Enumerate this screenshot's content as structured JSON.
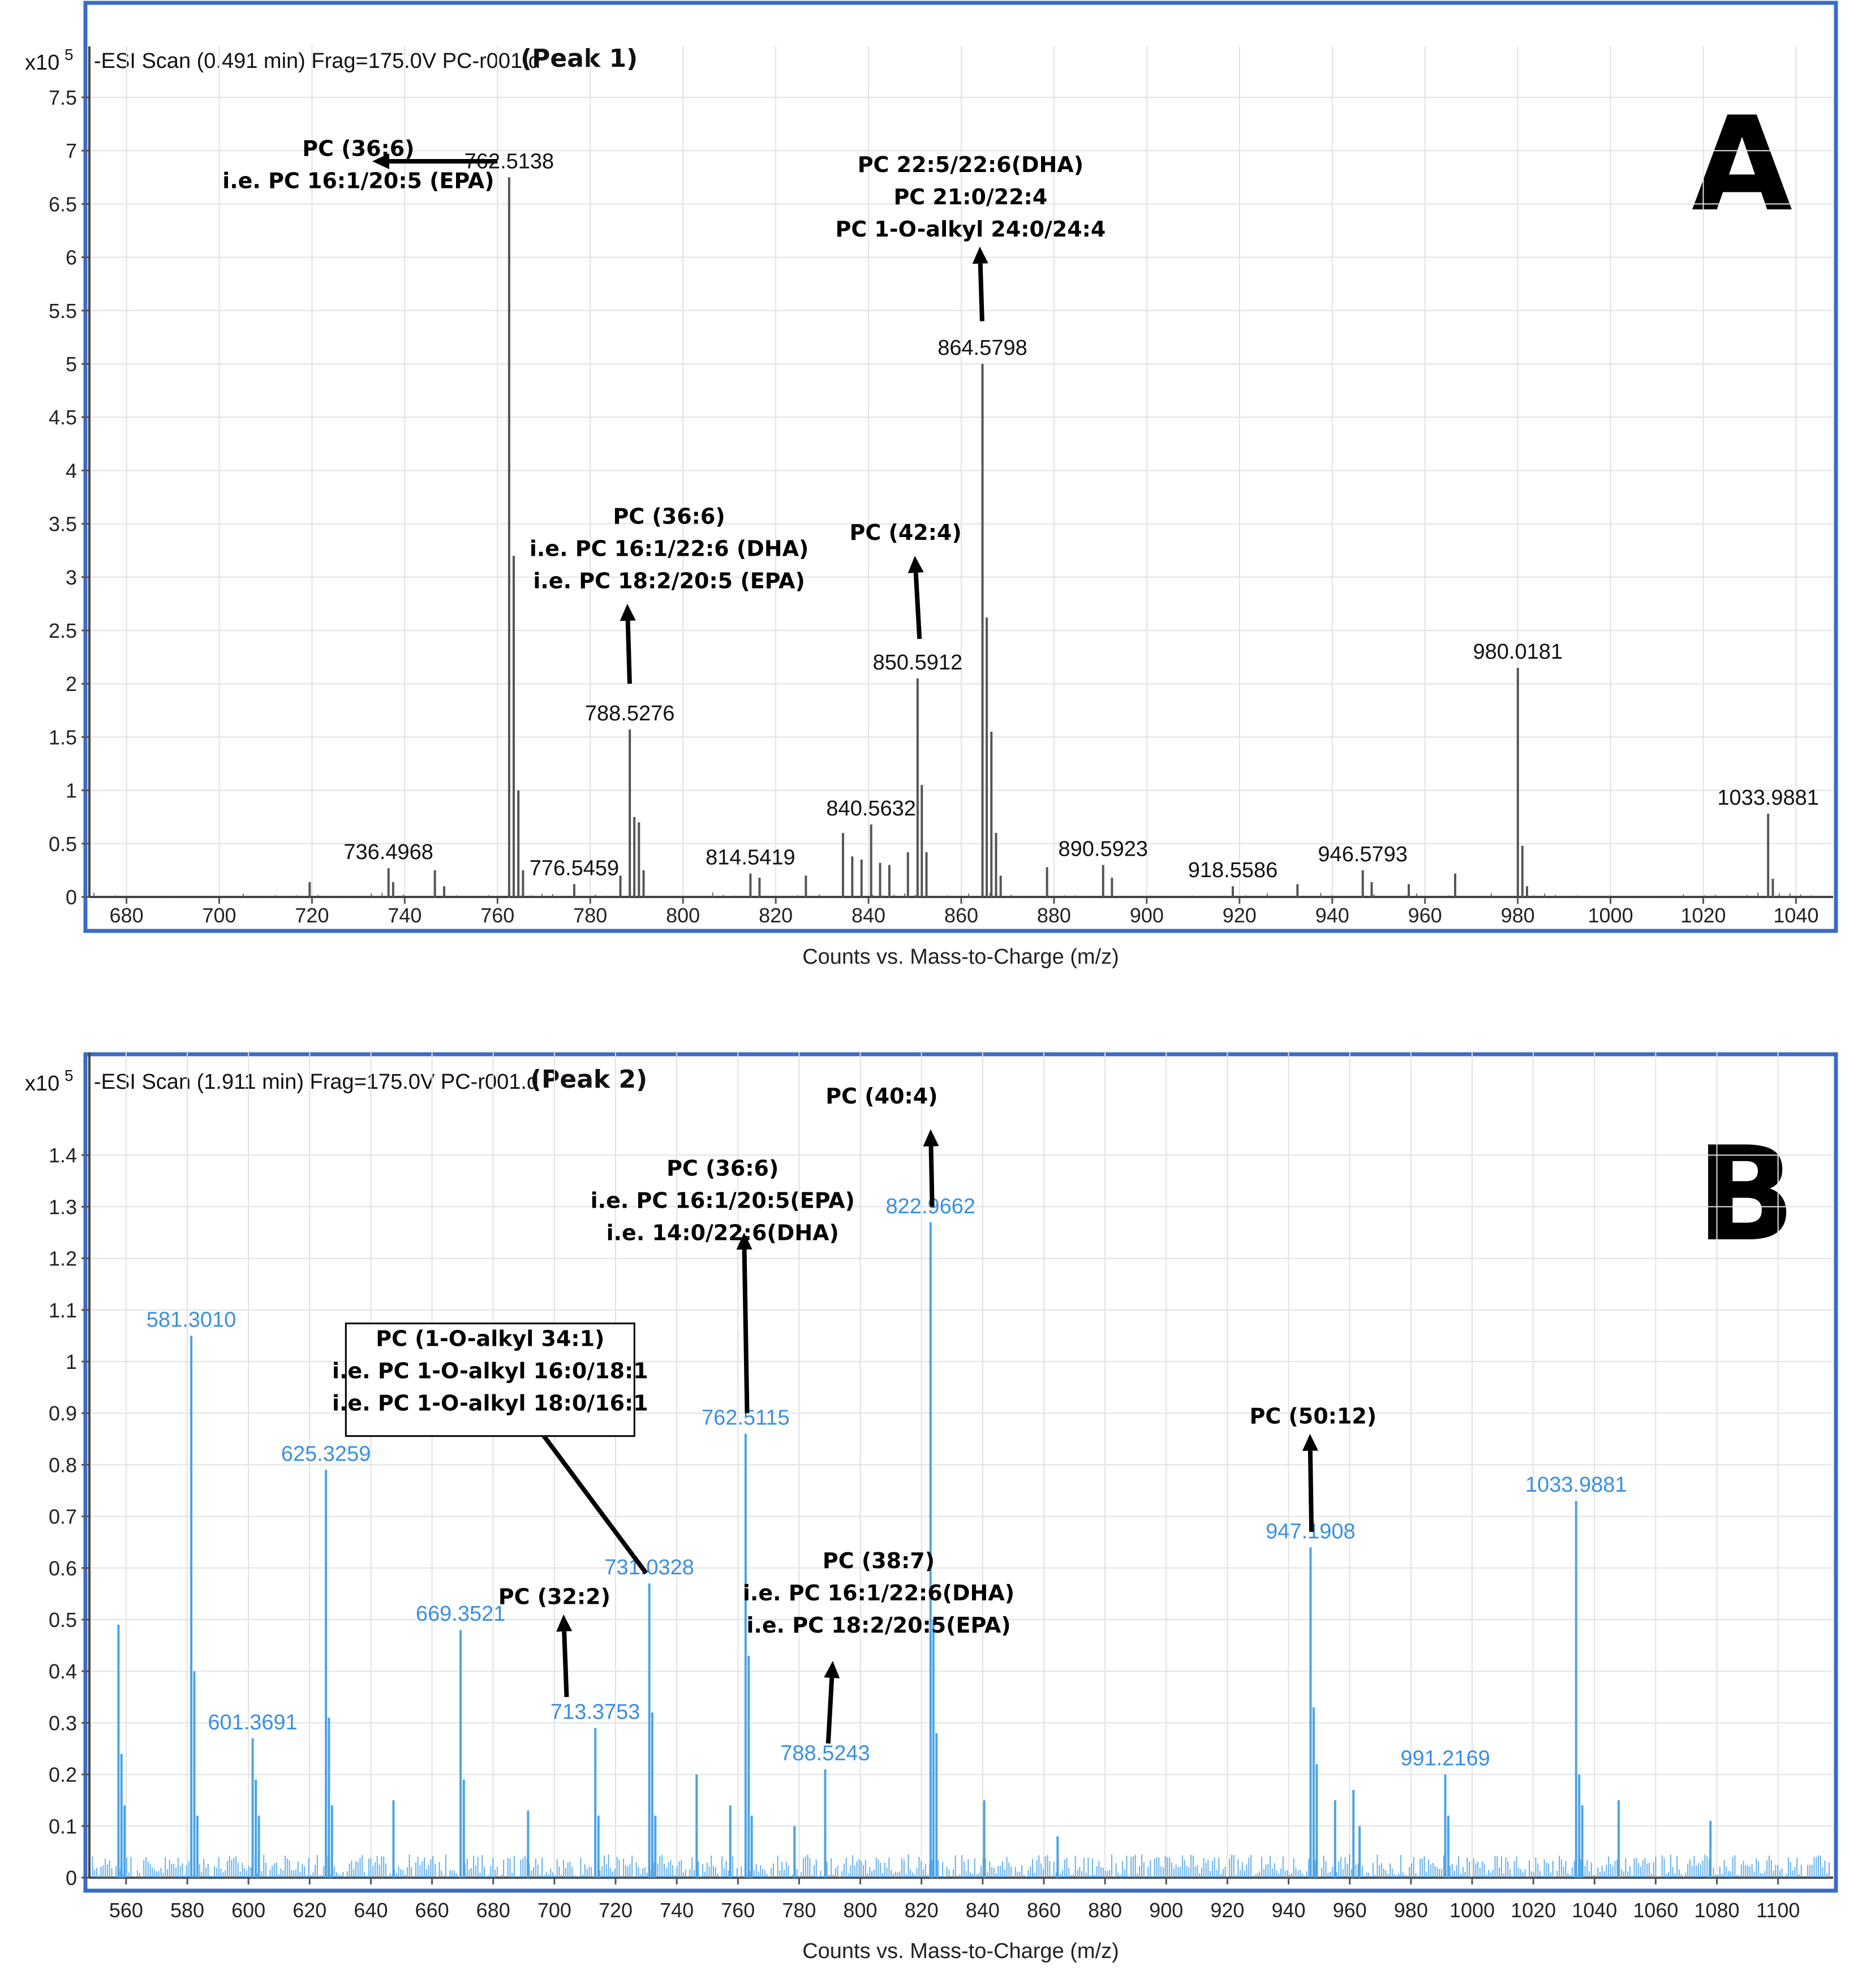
{
  "chart_data": [
    {
      "type": "bar",
      "panel_label": "A",
      "header": "-ESI Scan (0.491 min) Frag=175.0V PC-r001.d",
      "peak_title": "(Peak 1)",
      "y_multiplier": "x10",
      "y_exponent": "5",
      "xlabel": "Counts vs. Mass-to-Charge (m/z)",
      "xlim": [
        672,
        1048
      ],
      "ylim": [
        0,
        7.5
      ],
      "x_ticks": [
        680,
        700,
        720,
        740,
        760,
        780,
        800,
        820,
        840,
        860,
        880,
        900,
        920,
        940,
        960,
        980,
        1000,
        1020,
        1040
      ],
      "y_ticks": [
        0,
        0.5,
        1,
        1.5,
        2,
        2.5,
        3,
        3.5,
        4,
        4.5,
        5,
        5.5,
        6,
        6.5,
        7,
        7.5
      ],
      "y_tick_labels": [
        "0",
        "0.5",
        "1",
        "1.5",
        "2",
        "2.5",
        "3",
        "3.5",
        "4",
        "4.5",
        "5",
        "5.5",
        "6",
        "6.5",
        "7",
        "7.5"
      ],
      "bar_color": "#555555",
      "label_color": "#111111",
      "grid": true,
      "peaks": [
        {
          "mz": 736.5,
          "y": 0.27
        },
        {
          "mz": 737.5,
          "y": 0.14
        },
        {
          "mz": 746.5,
          "y": 0.25
        },
        {
          "mz": 748.5,
          "y": 0.1
        },
        {
          "mz": 719.5,
          "y": 0.14
        },
        {
          "mz": 762.5138,
          "y": 6.75
        },
        {
          "mz": 763.5,
          "y": 3.2
        },
        {
          "mz": 764.5,
          "y": 1.0
        },
        {
          "mz": 765.5,
          "y": 0.25
        },
        {
          "mz": 776.5459,
          "y": 0.12
        },
        {
          "mz": 786.5,
          "y": 0.2
        },
        {
          "mz": 788.5276,
          "y": 1.57
        },
        {
          "mz": 789.5,
          "y": 0.75
        },
        {
          "mz": 790.5,
          "y": 0.7
        },
        {
          "mz": 791.5,
          "y": 0.25
        },
        {
          "mz": 814.5419,
          "y": 0.22
        },
        {
          "mz": 816.5,
          "y": 0.18
        },
        {
          "mz": 826.5,
          "y": 0.2
        },
        {
          "mz": 834.5,
          "y": 0.6
        },
        {
          "mz": 836.5,
          "y": 0.38
        },
        {
          "mz": 838.5,
          "y": 0.35
        },
        {
          "mz": 840.5632,
          "y": 0.68
        },
        {
          "mz": 842.5,
          "y": 0.32
        },
        {
          "mz": 844.5,
          "y": 0.3
        },
        {
          "mz": 848.5,
          "y": 0.42
        },
        {
          "mz": 850.5912,
          "y": 2.05
        },
        {
          "mz": 851.5,
          "y": 1.05
        },
        {
          "mz": 852.5,
          "y": 0.42
        },
        {
          "mz": 864.5798,
          "y": 5.0
        },
        {
          "mz": 865.5,
          "y": 2.62
        },
        {
          "mz": 866.5,
          "y": 1.55
        },
        {
          "mz": 867.5,
          "y": 0.6
        },
        {
          "mz": 868.5,
          "y": 0.2
        },
        {
          "mz": 878.5,
          "y": 0.28
        },
        {
          "mz": 890.5923,
          "y": 0.3
        },
        {
          "mz": 892.5,
          "y": 0.18
        },
        {
          "mz": 918.5586,
          "y": 0.1
        },
        {
          "mz": 932.5,
          "y": 0.12
        },
        {
          "mz": 946.5793,
          "y": 0.25
        },
        {
          "mz": 948.5,
          "y": 0.14
        },
        {
          "mz": 956.5,
          "y": 0.12
        },
        {
          "mz": 966.5,
          "y": 0.22
        },
        {
          "mz": 980.0181,
          "y": 2.15
        },
        {
          "mz": 981.0,
          "y": 0.48
        },
        {
          "mz": 982.0,
          "y": 0.1
        },
        {
          "mz": 1033.9881,
          "y": 0.78
        },
        {
          "mz": 1035.0,
          "y": 0.17
        }
      ],
      "peak_labels": [
        {
          "mz": 736.4968,
          "y": 0.27,
          "text": "736.4968"
        },
        {
          "mz": 762.5138,
          "y": 6.75,
          "text": "762.5138"
        },
        {
          "mz": 776.5459,
          "y": 0.12,
          "text": "776.5459"
        },
        {
          "mz": 788.5276,
          "y": 1.57,
          "text": "788.5276"
        },
        {
          "mz": 814.5419,
          "y": 0.22,
          "text": "814.5419"
        },
        {
          "mz": 840.5632,
          "y": 0.68,
          "text": "840.5632"
        },
        {
          "mz": 850.5912,
          "y": 2.05,
          "text": "850.5912"
        },
        {
          "mz": 864.5798,
          "y": 5.0,
          "text": "864.5798"
        },
        {
          "mz": 890.5923,
          "y": 0.3,
          "text": "890.5923"
        },
        {
          "mz": 918.5586,
          "y": 0.1,
          "text": "918.5586"
        },
        {
          "mz": 946.5793,
          "y": 0.25,
          "text": "946.5793"
        },
        {
          "mz": 980.0181,
          "y": 2.15,
          "text": "980.0181"
        },
        {
          "mz": 1033.9881,
          "y": 0.78,
          "text": "1033.9881"
        }
      ],
      "annotations": [
        {
          "mz": 730,
          "y": 6.95,
          "lines": [
            "PC (36:6)",
            "i.e. PC 16:1/20:5 (EPA)"
          ]
        },
        {
          "mz": 797,
          "y": 3.5,
          "lines": [
            "PC (36:6)",
            "i.e. PC 16:1/22:6 (DHA)",
            "i.e. PC 18:2/20:5 (EPA)"
          ]
        },
        {
          "mz": 848,
          "y": 3.35,
          "lines": [
            "PC (42:4)"
          ]
        },
        {
          "mz": 862,
          "y": 6.8,
          "lines": [
            "PC 22:5/22:6(DHA)",
            "PC 21:0/22:4",
            "PC 1-O-alkyl 24:0/24:4"
          ]
        }
      ],
      "arrows": [
        {
          "from": [
            760,
            6.9
          ],
          "to": [
            733,
            6.9
          ]
        },
        {
          "from": [
            788.5,
            2.0
          ],
          "to": [
            788,
            2.75
          ]
        },
        {
          "from": [
            851,
            2.42
          ],
          "to": [
            850,
            3.2
          ]
        },
        {
          "from": [
            864.5,
            5.4
          ],
          "to": [
            864,
            6.1
          ]
        }
      ]
    },
    {
      "type": "bar",
      "panel_label": "B",
      "header": "-ESI Scan (1.911 min) Frag=175.0V PC-r001.d",
      "peak_title": "(Peak 2)",
      "y_multiplier": "x10",
      "y_exponent": "5",
      "xlabel": "Counts vs. Mass-to-Charge (m/z)",
      "xlim": [
        548,
        1118
      ],
      "ylim": [
        0,
        1.5
      ],
      "x_ticks": [
        560,
        580,
        600,
        620,
        640,
        660,
        680,
        700,
        720,
        740,
        760,
        780,
        800,
        820,
        840,
        860,
        880,
        900,
        920,
        940,
        960,
        980,
        1000,
        1020,
        1040,
        1060,
        1080,
        1100
      ],
      "y_ticks": [
        0,
        0.1,
        0.2,
        0.3,
        0.4,
        0.5,
        0.6,
        0.7,
        0.8,
        0.9,
        1.0,
        1.1,
        1.2,
        1.3,
        1.4
      ],
      "y_tick_labels": [
        "0",
        "0.1",
        "0.2",
        "0.3",
        "0.4",
        "0.5",
        "0.6",
        "0.7",
        "0.8",
        "0.9",
        "1",
        "1.1",
        "1.2",
        "1.3",
        "1.4"
      ],
      "bar_color": "#4ba3e8",
      "label_color": "#3a8fe0",
      "grid": true,
      "peaks": [
        {
          "mz": 557.5,
          "y": 0.49
        },
        {
          "mz": 558.5,
          "y": 0.24
        },
        {
          "mz": 559.5,
          "y": 0.14
        },
        {
          "mz": 581.301,
          "y": 1.05
        },
        {
          "mz": 582.3,
          "y": 0.4
        },
        {
          "mz": 583.3,
          "y": 0.12
        },
        {
          "mz": 601.3691,
          "y": 0.27
        },
        {
          "mz": 602.4,
          "y": 0.19
        },
        {
          "mz": 603.4,
          "y": 0.12
        },
        {
          "mz": 625.3259,
          "y": 0.79
        },
        {
          "mz": 626.3,
          "y": 0.31
        },
        {
          "mz": 627.3,
          "y": 0.14
        },
        {
          "mz": 647.4,
          "y": 0.15
        },
        {
          "mz": 669.3521,
          "y": 0.48
        },
        {
          "mz": 670.4,
          "y": 0.19
        },
        {
          "mz": 691.4,
          "y": 0.13
        },
        {
          "mz": 713.3753,
          "y": 0.29
        },
        {
          "mz": 714.4,
          "y": 0.12
        },
        {
          "mz": 731.0328,
          "y": 0.57
        },
        {
          "mz": 732.0,
          "y": 0.32
        },
        {
          "mz": 733.0,
          "y": 0.12
        },
        {
          "mz": 746.5,
          "y": 0.2
        },
        {
          "mz": 757.5,
          "y": 0.14
        },
        {
          "mz": 762.5115,
          "y": 0.86
        },
        {
          "mz": 763.5,
          "y": 0.43
        },
        {
          "mz": 764.5,
          "y": 0.12
        },
        {
          "mz": 778.5,
          "y": 0.1
        },
        {
          "mz": 788.5243,
          "y": 0.21
        },
        {
          "mz": 822.9662,
          "y": 1.27
        },
        {
          "mz": 823.9,
          "y": 0.5
        },
        {
          "mz": 824.9,
          "y": 0.28
        },
        {
          "mz": 840.5,
          "y": 0.15
        },
        {
          "mz": 864.5,
          "y": 0.08
        },
        {
          "mz": 947.1908,
          "y": 0.64
        },
        {
          "mz": 948.2,
          "y": 0.33
        },
        {
          "mz": 949.2,
          "y": 0.22
        },
        {
          "mz": 955.2,
          "y": 0.15
        },
        {
          "mz": 961.2,
          "y": 0.17
        },
        {
          "mz": 963.2,
          "y": 0.1
        },
        {
          "mz": 991.2169,
          "y": 0.2
        },
        {
          "mz": 992.2,
          "y": 0.12
        },
        {
          "mz": 1033.9881,
          "y": 0.73
        },
        {
          "mz": 1035.0,
          "y": 0.2
        },
        {
          "mz": 1036.0,
          "y": 0.14
        },
        {
          "mz": 1047.9,
          "y": 0.15
        },
        {
          "mz": 1077.9,
          "y": 0.11
        }
      ],
      "peak_labels": [
        {
          "mz": 581.301,
          "y": 1.05,
          "text": "581.3010"
        },
        {
          "mz": 601.3691,
          "y": 0.27,
          "text": "601.3691"
        },
        {
          "mz": 625.3259,
          "y": 0.79,
          "text": "625.3259"
        },
        {
          "mz": 669.3521,
          "y": 0.48,
          "text": "669.3521"
        },
        {
          "mz": 713.3753,
          "y": 0.29,
          "text": "713.3753"
        },
        {
          "mz": 731.0328,
          "y": 0.57,
          "text": "731.0328"
        },
        {
          "mz": 762.5115,
          "y": 0.86,
          "text": "762.5115"
        },
        {
          "mz": 788.5243,
          "y": 0.21,
          "text": "788.5243"
        },
        {
          "mz": 822.9662,
          "y": 1.27,
          "text": "822.9662"
        },
        {
          "mz": 947.1908,
          "y": 0.64,
          "text": "947.1908"
        },
        {
          "mz": 991.2169,
          "y": 0.2,
          "text": "991.2169"
        },
        {
          "mz": 1033.9881,
          "y": 0.73,
          "text": "1033.9881"
        }
      ],
      "annotations": [
        {
          "mz": 807,
          "y": 1.5,
          "lines": [
            "PC (40:4)"
          ]
        },
        {
          "mz": 755,
          "y": 1.36,
          "lines": [
            "PC (36:6)",
            "i.e. PC 16:1/20:5(EPA)",
            "i.e. 14:0/22:6(DHA)"
          ]
        },
        {
          "mz": 679,
          "y": 1.03,
          "lines": [
            "PC (1-O-alkyl 34:1)",
            "i.e. PC 1-O-alkyl 16:0/18:1",
            "i.e. PC 1-O-alkyl 18:0/16:1"
          ],
          "boxed": true
        },
        {
          "mz": 948,
          "y": 0.88,
          "lines": [
            "PC (50:12)"
          ]
        },
        {
          "mz": 700,
          "y": 0.53,
          "lines": [
            "PC (32:2)"
          ]
        },
        {
          "mz": 806,
          "y": 0.6,
          "lines": [
            "PC (38:7)",
            "i.e. PC 16:1/22:6(DHA)",
            "i.e. PC 18:2/20:5(EPA)"
          ]
        }
      ],
      "arrows": [
        {
          "from": [
            823.5,
            1.3
          ],
          "to": [
            823,
            1.45
          ]
        },
        {
          "from": [
            763,
            0.9
          ],
          "to": [
            762,
            1.25
          ]
        },
        {
          "from": [
            730,
            0.59
          ],
          "to": [
            691,
            0.9
          ]
        },
        {
          "from": [
            947.5,
            0.67
          ],
          "to": [
            947,
            0.86
          ]
        },
        {
          "from": [
            704,
            0.35
          ],
          "to": [
            703,
            0.51
          ]
        },
        {
          "from": [
            789.5,
            0.26
          ],
          "to": [
            791,
            0.42
          ]
        }
      ]
    }
  ]
}
